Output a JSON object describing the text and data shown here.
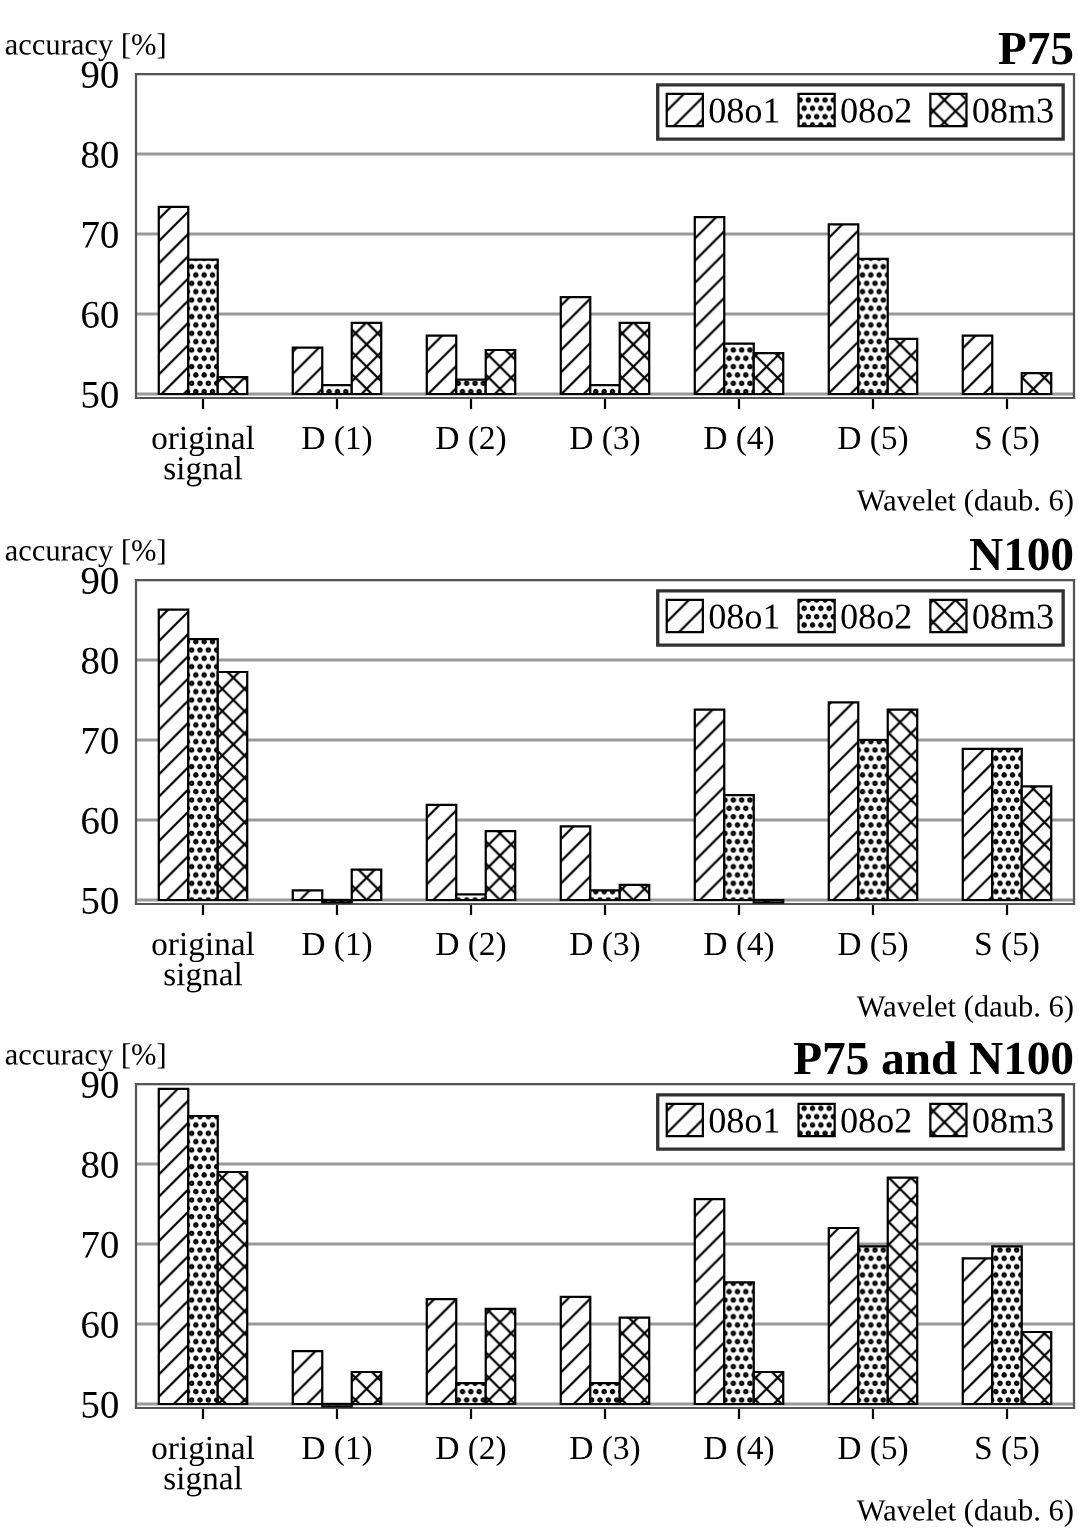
{
  "chart_data": [
    {
      "type": "bar",
      "title": "P75",
      "ylabel": "accuracy [%]",
      "xlabel": "Wavelet (daub. 6)",
      "categories": [
        "original\nsignal",
        "D (1)",
        "D (2)",
        "D (3)",
        "D (4)",
        "D (5)",
        "S (5)"
      ],
      "series": [
        {
          "name": "08o1",
          "color": "#000000",
          "values": [
            73.4,
            55.8,
            57.3,
            62.1,
            72.1,
            71.2,
            57.3
          ]
        },
        {
          "name": "08o2",
          "color": "#000000",
          "values": [
            66.8,
            51.1,
            51.8,
            51.1,
            56.3,
            66.9,
            50
          ]
        },
        {
          "name": "08m3",
          "color": "#000000",
          "values": [
            52.1,
            58.9,
            55.5,
            58.9,
            55.1,
            56.9,
            52.6
          ]
        }
      ],
      "ylim": [
        49.5,
        90
      ],
      "yticks": [
        50,
        60,
        70,
        80,
        90
      ],
      "grid": "y",
      "legend": "top right"
    },
    {
      "type": "bar",
      "title": "N100",
      "ylabel": "accuracy [%]",
      "xlabel": "Wavelet (daub. 6)",
      "categories": [
        "original\nsignal",
        "D (1)",
        "D (2)",
        "D (3)",
        "D (4)",
        "D (5)",
        "S (5)"
      ],
      "series": [
        {
          "name": "08o1",
          "color": "#000000",
          "values": [
            86.3,
            51.2,
            61.9,
            59.2,
            73.8,
            74.7,
            68.9
          ]
        },
        {
          "name": "08o2",
          "color": "#000000",
          "values": [
            82.6,
            49.7,
            50.7,
            51.2,
            63.1,
            70,
            68.9
          ]
        },
        {
          "name": "08m3",
          "color": "#000000",
          "values": [
            78.5,
            53.8,
            58.6,
            51.9,
            49.7,
            73.8,
            64.2
          ]
        }
      ],
      "ylim": [
        49.5,
        90
      ],
      "yticks": [
        50,
        60,
        70,
        80,
        90
      ],
      "grid": "y",
      "legend": "top right"
    },
    {
      "type": "bar",
      "title": "P75 and N100",
      "ylabel": "accuracy [%]",
      "xlabel": "Wavelet (daub. 6)",
      "categories": [
        "original\nsignal",
        "D (1)",
        "D (2)",
        "D (3)",
        "D (4)",
        "D (5)",
        "S (5)"
      ],
      "series": [
        {
          "name": "08o1",
          "color": "#000000",
          "values": [
            89.4,
            56.6,
            63.1,
            63.4,
            75.6,
            72,
            68.2
          ]
        },
        {
          "name": "08o2",
          "color": "#000000",
          "values": [
            86,
            49.7,
            52.6,
            52.6,
            65.2,
            69.7,
            69.7
          ]
        },
        {
          "name": "08m3",
          "color": "#000000",
          "values": [
            79,
            54,
            61.9,
            60.8,
            54,
            78.3,
            59
          ]
        }
      ],
      "ylim": [
        49.5,
        90
      ],
      "yticks": [
        50,
        60,
        70,
        80,
        90
      ],
      "grid": "y",
      "legend": "top right"
    }
  ]
}
